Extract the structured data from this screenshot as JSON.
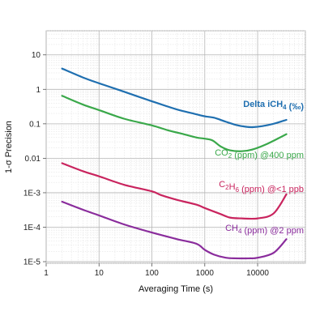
{
  "chart_data": {
    "type": "line",
    "xlabel": "Averaging Time (s)",
    "ylabel": "1-σ Precision",
    "xscale": "log",
    "yscale": "log",
    "xlim": [
      1,
      80000
    ],
    "ylim": [
      9e-06,
      50
    ],
    "grid": true,
    "x_ticks": [
      {
        "value": 1,
        "label": "1"
      },
      {
        "value": 10,
        "label": "10"
      },
      {
        "value": 100,
        "label": "100"
      },
      {
        "value": 1000,
        "label": "1000"
      },
      {
        "value": 10000,
        "label": "10000"
      }
    ],
    "y_ticks": [
      {
        "value": 10,
        "label": "10"
      },
      {
        "value": 1,
        "label": "1"
      },
      {
        "value": 0.1,
        "label": "0.1"
      },
      {
        "value": 0.01,
        "label": "0.01"
      },
      {
        "value": 0.001,
        "label": "1E-3"
      },
      {
        "value": 0.0001,
        "label": "1E-4"
      },
      {
        "value": 1e-05,
        "label": "1E-5"
      }
    ],
    "series": [
      {
        "name": "Delta iCH4 (‰)",
        "color": "#1f6fb0",
        "x": [
          2,
          5,
          10,
          30,
          100,
          300,
          600,
          1000,
          1500,
          2500,
          4000,
          6000,
          8000,
          12000,
          20000,
          35000
        ],
        "y": [
          4,
          2.2,
          1.5,
          0.85,
          0.45,
          0.26,
          0.2,
          0.165,
          0.15,
          0.115,
          0.092,
          0.082,
          0.08,
          0.085,
          0.1,
          0.13
        ]
      },
      {
        "name": "CO2 (ppm) @400 ppm",
        "color": "#3aa84a",
        "x": [
          2,
          5,
          10,
          30,
          100,
          200,
          400,
          700,
          1000,
          1400,
          2000,
          3000,
          5000,
          8000,
          15000,
          35000
        ],
        "y": [
          0.65,
          0.36,
          0.25,
          0.14,
          0.09,
          0.065,
          0.05,
          0.04,
          0.037,
          0.033,
          0.022,
          0.017,
          0.016,
          0.018,
          0.026,
          0.05
        ]
      },
      {
        "name": "C2H6 (ppm) @<1 ppb",
        "color": "#c9245e",
        "x": [
          2,
          5,
          10,
          30,
          100,
          150,
          300,
          700,
          1000,
          2000,
          3000,
          5000,
          10000,
          20000,
          35000
        ],
        "y": [
          0.0072,
          0.0042,
          0.003,
          0.0017,
          0.0011,
          0.00085,
          0.00062,
          0.00045,
          0.00036,
          0.00024,
          0.00019,
          0.00018,
          0.00018,
          0.00025,
          0.0009
        ]
      },
      {
        "name": "CH4 (ppm) @2 ppm",
        "color": "#8a2c9c",
        "x": [
          2,
          5,
          10,
          30,
          100,
          300,
          700,
          1000,
          1500,
          2500,
          4000,
          7000,
          10000,
          20000,
          35000
        ],
        "y": [
          0.00055,
          0.00032,
          0.00022,
          0.00012,
          7e-05,
          4.5e-05,
          3.3e-05,
          2.2e-05,
          1.6e-05,
          1.3e-05,
          1.25e-05,
          1.25e-05,
          1.3e-05,
          1.8e-05,
          4.5e-05
        ]
      }
    ],
    "labels": [
      {
        "series": 0,
        "text_main": "Delta iCH",
        "text_sub": "4",
        "text_tail": " (‰)",
        "bold": true
      },
      {
        "series": 1,
        "text_main": "CO",
        "text_sub": "2",
        "text_tail": " (ppm) @400 ppm",
        "bold": false
      },
      {
        "series": 2,
        "text_main": "C",
        "text_sub": "2",
        "text_mid": "H",
        "text_sub2": "6",
        "text_tail": " (ppm) @<1 ppb",
        "bold": false
      },
      {
        "series": 3,
        "text_main": "CH",
        "text_sub": "4",
        "text_tail": " (ppm) @2 ppm",
        "bold": false
      }
    ]
  }
}
